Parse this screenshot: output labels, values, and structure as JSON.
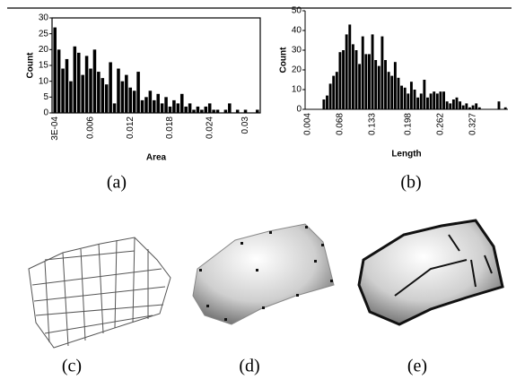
{
  "chart_data": [
    {
      "type": "bar",
      "caption": "(a)",
      "x_label": "Area",
      "y_label": "Count",
      "color": "#000000",
      "categories": [
        "3E-04",
        null,
        null,
        null,
        null,
        null,
        null,
        null,
        null,
        "0.006",
        null,
        null,
        null,
        null,
        null,
        null,
        null,
        null,
        null,
        "0.012",
        null,
        null,
        null,
        null,
        null,
        null,
        null,
        null,
        null,
        "0.018",
        null,
        null,
        null,
        null,
        null,
        null,
        null,
        null,
        null,
        "0.024",
        null,
        null,
        null,
        null,
        null,
        null,
        null,
        null,
        "0.03",
        null,
        null,
        null
      ],
      "values": [
        27,
        20,
        14,
        17,
        10,
        21,
        19,
        12,
        18,
        14,
        20,
        13,
        11,
        9,
        16,
        3,
        14,
        10,
        12,
        8,
        7,
        13,
        4,
        5,
        7,
        4,
        6,
        3,
        5,
        2,
        4,
        3,
        6,
        2,
        3,
        1,
        2,
        1,
        2,
        3,
        1,
        1,
        0,
        1,
        3,
        0,
        1,
        0,
        1,
        0,
        0,
        1
      ],
      "ylim": [
        0,
        30
      ],
      "yticks": [
        0,
        5,
        10,
        15,
        20,
        25,
        30
      ]
    },
    {
      "type": "bar",
      "caption": "(b)",
      "x_label": "Length",
      "y_label": "Count",
      "color": "#000000",
      "categories": [
        "0.004",
        null,
        null,
        null,
        null,
        null,
        null,
        null,
        null,
        null,
        "0.068",
        null,
        null,
        null,
        null,
        null,
        null,
        null,
        null,
        null,
        "0.133",
        null,
        null,
        null,
        null,
        null,
        null,
        null,
        null,
        null,
        null,
        "0.198",
        null,
        null,
        null,
        null,
        null,
        null,
        null,
        null,
        null,
        "0.262",
        null,
        null,
        null,
        null,
        null,
        null,
        null,
        null,
        null,
        "0.327",
        null,
        null,
        null,
        null,
        null,
        null,
        null,
        null,
        null,
        null
      ],
      "values": [
        0,
        0,
        0,
        0,
        0,
        5,
        7,
        13,
        17,
        19,
        29,
        30,
        38,
        43,
        33,
        30,
        23,
        37,
        28,
        28,
        38,
        25,
        22,
        37,
        25,
        19,
        17,
        24,
        16,
        12,
        11,
        8,
        14,
        10,
        6,
        8,
        15,
        6,
        8,
        9,
        8,
        9,
        9,
        4,
        3,
        5,
        6,
        4,
        2,
        3,
        1,
        2,
        3,
        1,
        0,
        0,
        0,
        0,
        0,
        4,
        0,
        1
      ],
      "ylim": [
        0,
        50
      ],
      "yticks": [
        0,
        10,
        20,
        30,
        40,
        50
      ]
    }
  ],
  "captions": [
    "(c)",
    "(d)",
    "(e)"
  ]
}
